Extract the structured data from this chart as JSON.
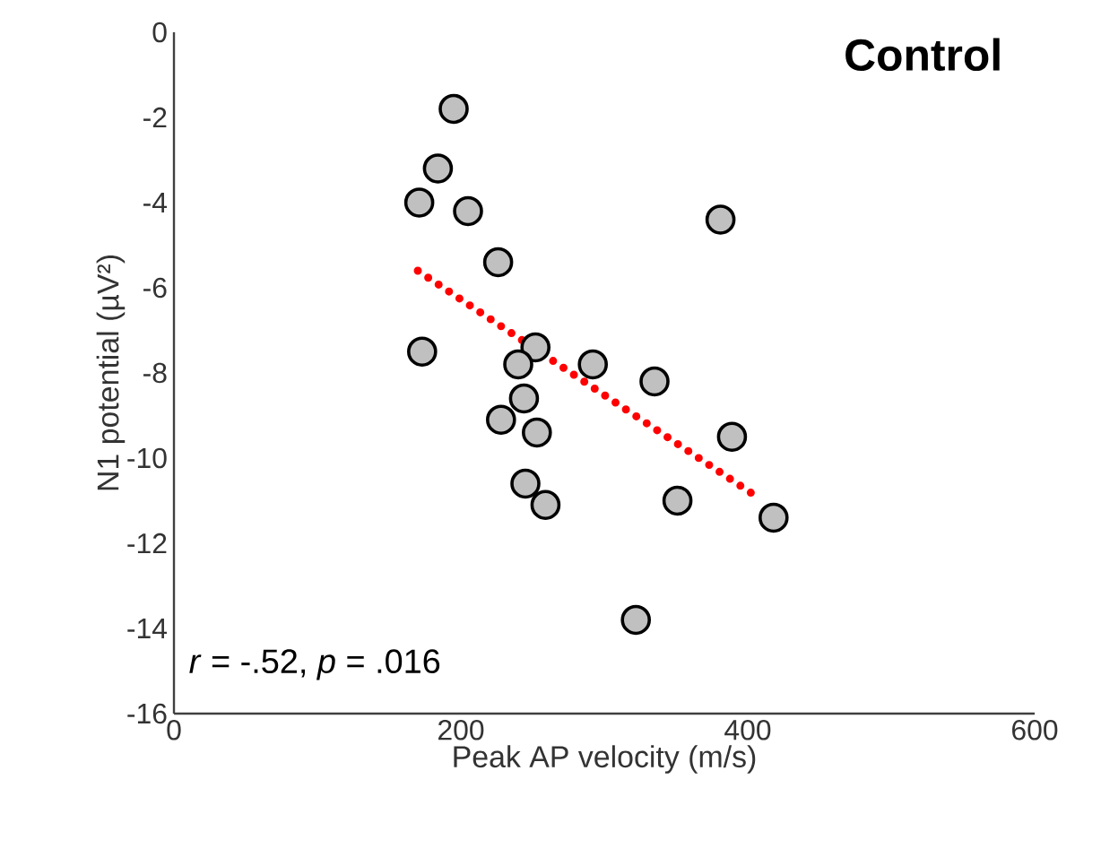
{
  "chart_data": {
    "type": "scatter",
    "title": "Control",
    "xlabel": "Peak AP velocity (m/s)",
    "ylabel": "N1 potential (µV²)",
    "xlim": [
      0,
      600
    ],
    "ylim": [
      -16,
      0
    ],
    "xticks": [
      0,
      200,
      400,
      600
    ],
    "yticks": [
      -16,
      -14,
      -12,
      -10,
      -8,
      -6,
      -4,
      -2,
      0
    ],
    "annotations": [
      "*r* = -.52, *p* = .016"
    ],
    "series": [
      {
        "type": "scatter",
        "marker": "circle",
        "color": "#c0c0c0",
        "x": [
          195,
          184,
          171,
          205,
          381,
          226,
          173,
          252,
          240,
          292,
          335,
          244,
          228,
          253,
          389,
          245,
          259,
          351,
          418,
          322
        ],
        "values": [
          -1.8,
          -3.2,
          -4.0,
          -4.2,
          -4.4,
          -5.4,
          -7.5,
          -7.4,
          -7.8,
          -7.8,
          -8.2,
          -8.6,
          -9.1,
          -9.4,
          -9.5,
          -10.6,
          -11.1,
          -11.0,
          -11.4,
          -13.8
        ]
      },
      {
        "type": "line",
        "marker": "none",
        "line_style": "dotted",
        "color": "#ff0000",
        "x": [
          170,
          406
        ],
        "values": [
          -5.6,
          -10.9
        ]
      }
    ]
  }
}
